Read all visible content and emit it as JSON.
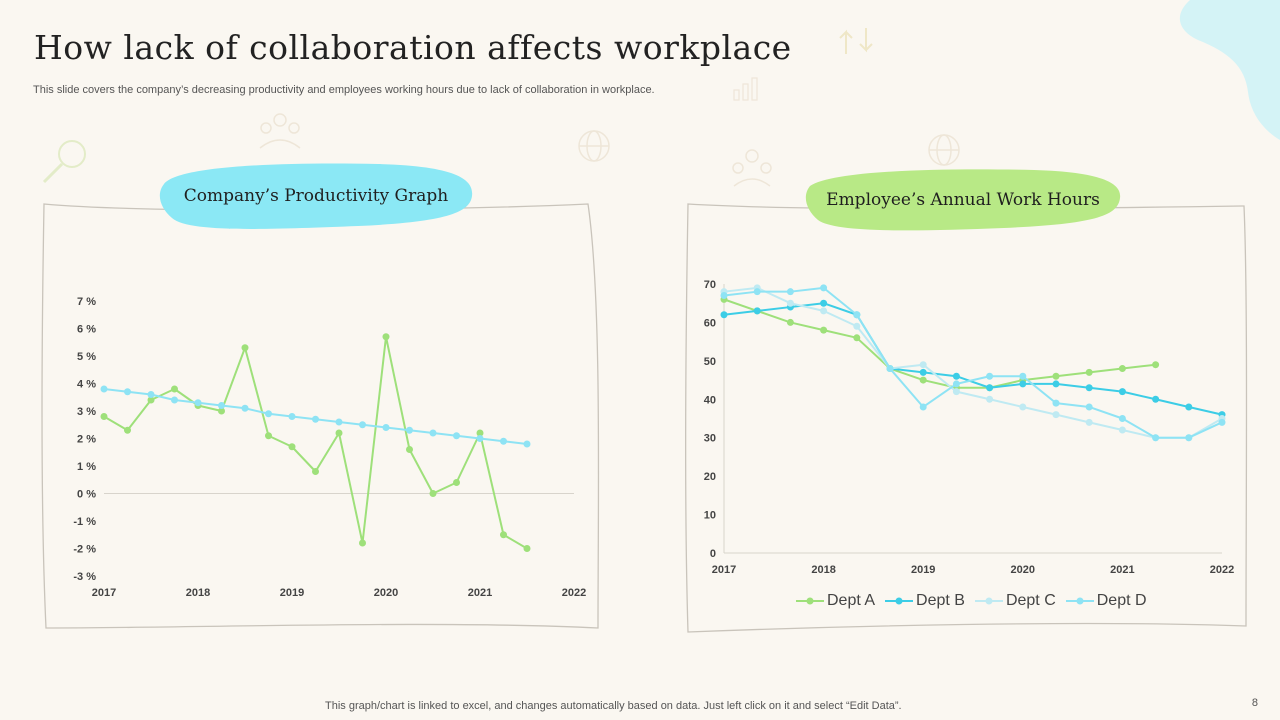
{
  "slide": {
    "title": "How lack of collaboration affects workplace",
    "subtitle": "This slide covers the company’s decreasing productivity and employees working hours due to lack of collaboration in workplace.",
    "footer": "This graph/chart is linked to excel,  and changes automatically based on data. Just left click on it and select “Edit Data”.",
    "page_number": "8",
    "left_panel_title": "Company’s Productivity Graph",
    "right_panel_title": "Employee’s Annual Work Hours"
  },
  "colors": {
    "green": "#9ee07a",
    "blue": "#3ccde6",
    "light_blue": "#bfeaf2",
    "sky": "#8ee3f4",
    "pill_blue": "#8be8f5",
    "pill_green": "#b8e986",
    "corner": "#d4f3f6"
  },
  "chart_data": [
    {
      "type": "line",
      "title": "Company’s Productivity Graph",
      "xlim": [
        2017,
        2022
      ],
      "x_ticks": [
        "2017",
        "2018",
        "2019",
        "2020",
        "2021",
        "2022"
      ],
      "ylim": [
        -3,
        7
      ],
      "y_ticks": [
        "-3 %",
        "-2 %",
        "-1 %",
        "0 %",
        "1 %",
        "2 %",
        "3 %",
        "4 %",
        "5 %",
        "6 %",
        "7 %"
      ],
      "series": [
        {
          "color": "#9ee07a",
          "x": [
            2017,
            2017.25,
            2017.5,
            2017.75,
            2018,
            2018.25,
            2018.5,
            2018.75,
            2019,
            2019.25,
            2019.5,
            2019.75,
            2020,
            2020.25,
            2020.5,
            2020.75,
            2021,
            2021.25,
            2021.5,
            2021.75
          ],
          "values": [
            2.8,
            2.3,
            3.4,
            3.8,
            3.2,
            3.0,
            5.3,
            2.1,
            1.7,
            0.8,
            2.2,
            -1.8,
            5.7,
            1.6,
            0.0,
            0.4,
            2.2,
            -1.5,
            -2.0,
            null
          ]
        },
        {
          "color": "#8ee3f4",
          "x": [
            2017,
            2017.25,
            2017.5,
            2017.75,
            2018,
            2018.25,
            2018.5,
            2018.75,
            2019,
            2019.25,
            2019.5,
            2019.75,
            2020,
            2020.25,
            2020.5,
            2020.75,
            2021,
            2021.25,
            2021.5,
            2021.75
          ],
          "values": [
            3.8,
            3.7,
            3.6,
            3.4,
            3.3,
            3.2,
            3.1,
            2.9,
            2.8,
            2.7,
            2.6,
            2.5,
            2.4,
            2.3,
            2.2,
            2.1,
            2.0,
            1.9,
            1.8,
            null
          ]
        }
      ]
    },
    {
      "type": "line",
      "title": "Employee’s Annual Work Hours",
      "xlim": [
        2017,
        2022
      ],
      "x_ticks": [
        "2017",
        "2018",
        "2019",
        "2020",
        "2021",
        "2022"
      ],
      "ylim": [
        0,
        70
      ],
      "y_ticks": [
        "0",
        "10",
        "20",
        "30",
        "40",
        "50",
        "60",
        "70"
      ],
      "legend": "bottom",
      "series": [
        {
          "name": "Dept A",
          "color": "#9ee07a",
          "values": [
            66,
            63,
            60,
            58,
            56,
            48,
            45,
            43,
            43,
            45,
            46,
            47,
            48,
            49
          ]
        },
        {
          "name": "Dept B",
          "color": "#3ccde6",
          "values": [
            62,
            63,
            64,
            65,
            62,
            48,
            47,
            46,
            43,
            44,
            44,
            43,
            42,
            40,
            38,
            36
          ]
        },
        {
          "name": "Dept C",
          "color": "#bfeaf2",
          "values": [
            68,
            69,
            65,
            63,
            59,
            48,
            49,
            42,
            40,
            38,
            36,
            34,
            32,
            30,
            30,
            35
          ]
        },
        {
          "name": "Dept D",
          "color": "#8ee3f4",
          "values": [
            67,
            68,
            68,
            69,
            62,
            48,
            38,
            44,
            46,
            46,
            39,
            38,
            35,
            30,
            30,
            34
          ]
        }
      ]
    }
  ]
}
